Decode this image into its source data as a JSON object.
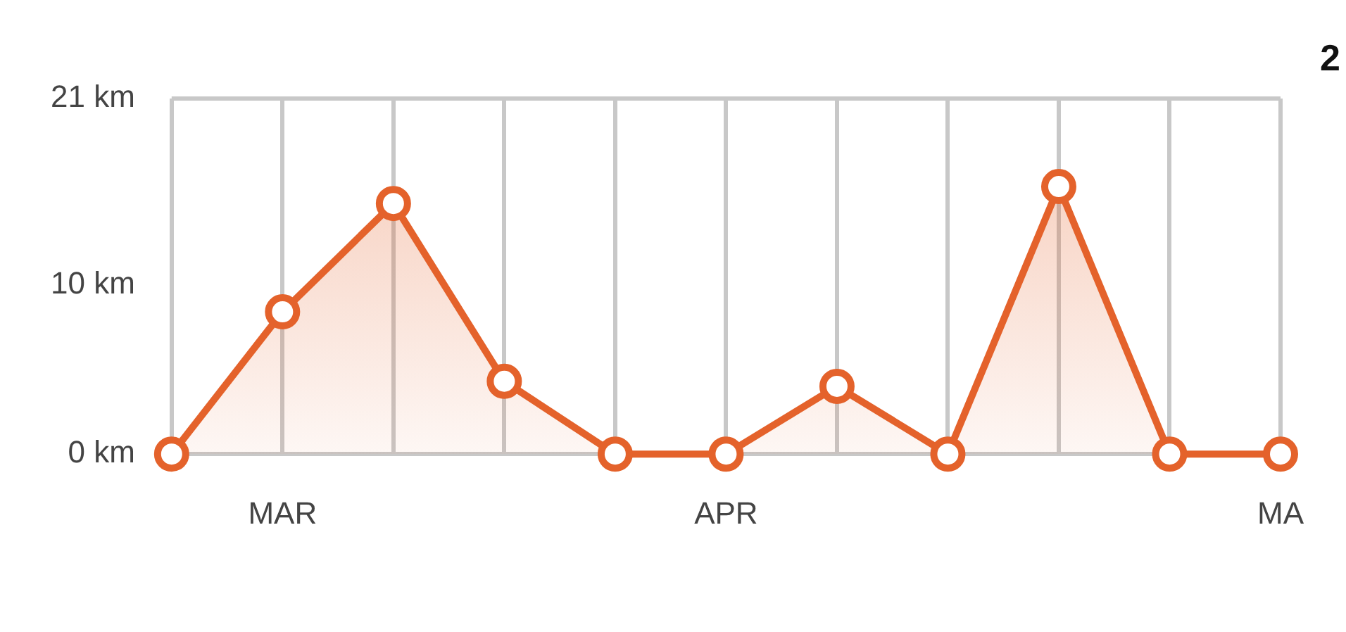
{
  "chart_data": {
    "type": "area",
    "title": "2",
    "categories": [
      null,
      "MAR",
      null,
      null,
      null,
      "APR",
      null,
      null,
      null,
      null,
      "MA"
    ],
    "series": [
      {
        "color": "#e4622b",
        "values": [
          0,
          8.4,
          14.8,
          4.3,
          0,
          0,
          4.0,
          0,
          15.8,
          0,
          0
        ]
      }
    ],
    "ylim": [
      0,
      21
    ],
    "yticks": [
      {
        "value": 0,
        "label": "0 km"
      },
      {
        "value": 10,
        "label": "10 km"
      },
      {
        "value": 21,
        "label": "21 km"
      }
    ],
    "grid": "x",
    "legend": false,
    "marker": "circle",
    "line_style": "solid"
  }
}
